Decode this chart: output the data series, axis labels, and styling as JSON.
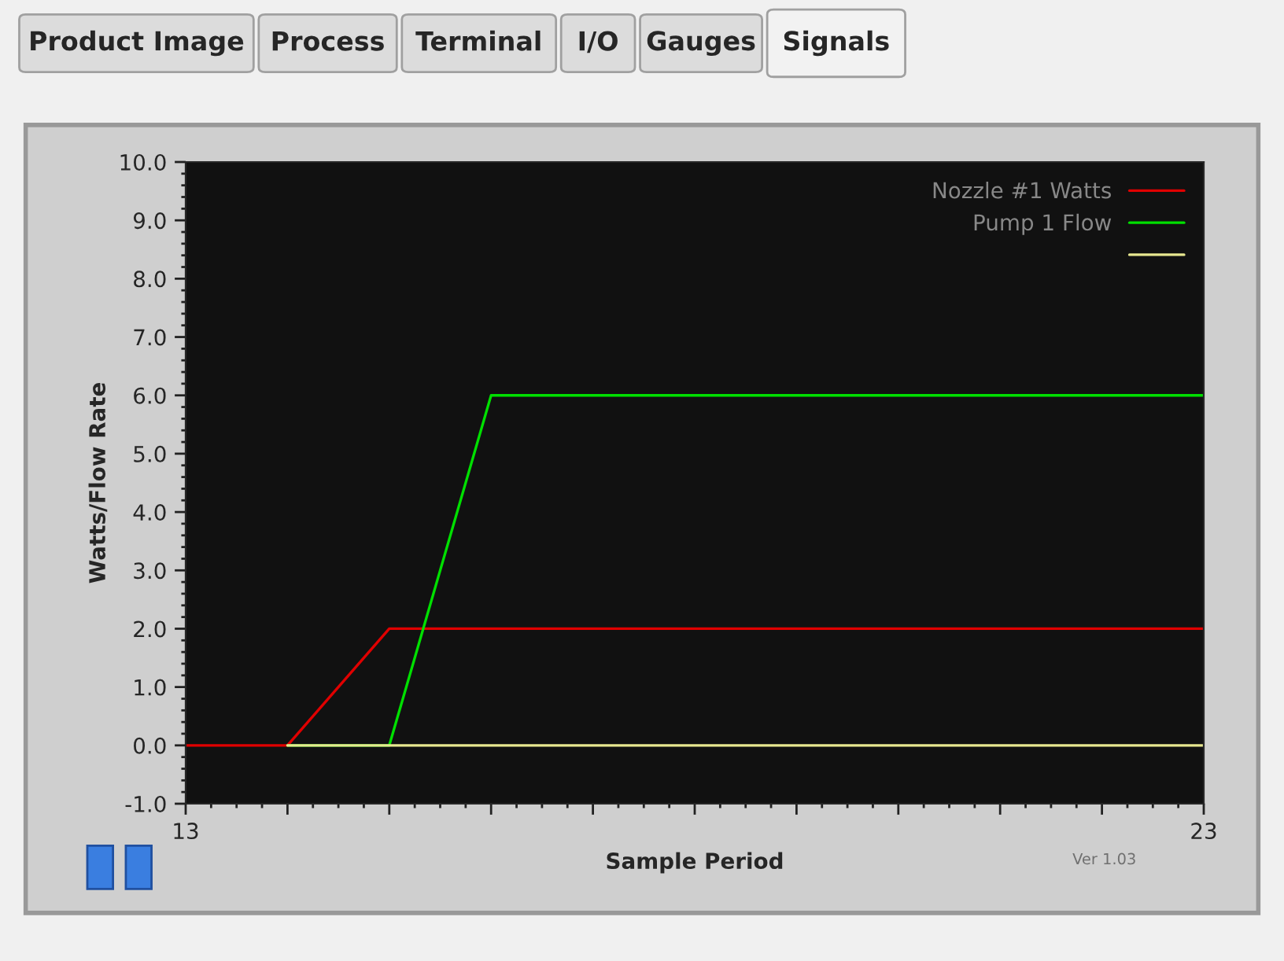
{
  "chart_data": {
    "type": "line",
    "xlabel": "Sample Period",
    "ylabel": "Watts/Flow Rate",
    "xlim": [
      13,
      23
    ],
    "xticks": [
      13,
      {
        "value": 14,
        "label": null
      },
      {
        "value": 15,
        "label": null
      },
      {
        "value": 16,
        "label": null
      },
      {
        "value": 17,
        "label": null
      },
      {
        "value": 18,
        "label": null
      },
      {
        "value": 19,
        "label": null
      },
      {
        "value": 20,
        "label": null
      },
      {
        "value": 21,
        "label": null
      },
      {
        "value": 22,
        "label": null
      },
      23
    ],
    "ylim": [
      -1,
      10
    ],
    "yticks": [
      {
        "value": -1,
        "label": "-1.0"
      },
      {
        "value": 0,
        "label": "0.0"
      },
      {
        "value": 1,
        "label": "1.0"
      },
      {
        "value": 2,
        "label": "2.0"
      },
      {
        "value": 3,
        "label": "3.0"
      },
      {
        "value": 4,
        "label": "4.0"
      },
      {
        "value": 5,
        "label": "5.0"
      },
      {
        "value": 6,
        "label": "6.0"
      },
      {
        "value": 7,
        "label": "7.0"
      },
      {
        "value": 8,
        "label": "8.0"
      },
      {
        "value": 9,
        "label": "9.0"
      },
      {
        "value": 10,
        "label": "10.0"
      }
    ],
    "series": [
      {
        "name": "Nozzle #1 Watts",
        "color": "#e00000",
        "x": [
          13,
          14,
          15,
          23
        ],
        "values": [
          0,
          0,
          2,
          2
        ]
      },
      {
        "name": "Pump 1 Flow",
        "color": "#00e000",
        "x": [
          14,
          15,
          16,
          23
        ],
        "values": [
          0,
          0,
          6,
          6
        ]
      },
      {
        "color": "#e8e890",
        "x": [
          14,
          23
        ],
        "values": [
          0,
          0
        ]
      }
    ],
    "grid": false,
    "legend": "top right",
    "marker": "none",
    "line_style": "solid",
    "annotations": [
      "Product Image",
      "Process",
      "Terminal",
      "I/O",
      "Gauges",
      "Signals",
      "Ver 1.03"
    ]
  }
}
